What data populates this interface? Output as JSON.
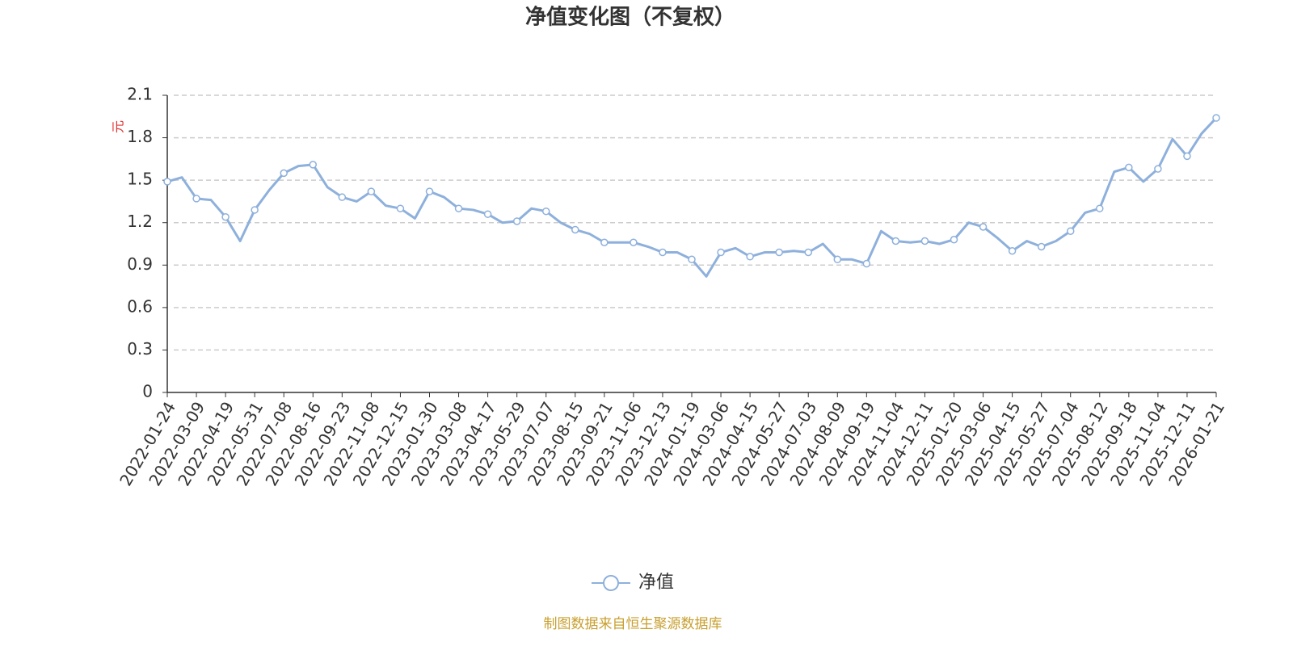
{
  "chart_data": {
    "type": "line",
    "title": "净值变化图（不复权）",
    "y_label": "元",
    "source": "制图数据来自恒生聚源数据库",
    "categories": [
      "2022-01-24",
      null,
      "2022-03-09",
      null,
      "2022-04-19",
      null,
      "2022-05-31",
      null,
      "2022-07-08",
      null,
      "2022-08-16",
      null,
      "2022-09-23",
      null,
      "2022-11-08",
      null,
      "2022-12-15",
      null,
      "2023-01-30",
      null,
      "2023-03-08",
      null,
      "2023-04-17",
      null,
      "2023-05-29",
      null,
      "2023-07-07",
      null,
      "2023-08-15",
      null,
      "2023-09-21",
      null,
      "2023-11-06",
      null,
      "2023-12-13",
      null,
      "2024-01-19",
      null,
      "2024-03-06",
      null,
      "2024-04-15",
      null,
      "2024-05-27",
      null,
      "2024-07-03",
      null,
      "2024-08-09",
      null,
      "2024-09-19",
      null,
      "2024-11-04",
      null,
      "2024-12-11",
      null,
      "2025-01-20",
      null,
      "2025-03-06",
      null,
      "2025-04-15",
      null,
      "2025-05-27",
      null,
      "2025-07-04",
      null,
      "2025-08-12",
      null,
      "2025-09-18",
      null,
      "2025-11-04",
      null,
      "2025-12-11",
      null,
      "2026-01-21"
    ],
    "series": [
      {
        "name": "净值",
        "color": "#8eb0dc",
        "values": [
          1.49,
          1.52,
          1.37,
          1.36,
          1.24,
          1.07,
          1.29,
          1.43,
          1.55,
          1.6,
          1.61,
          1.45,
          1.38,
          1.35,
          1.42,
          1.32,
          1.3,
          1.23,
          1.42,
          1.38,
          1.3,
          1.29,
          1.26,
          1.2,
          1.21,
          1.3,
          1.28,
          1.2,
          1.15,
          1.12,
          1.06,
          1.06,
          1.06,
          1.03,
          0.99,
          0.99,
          0.94,
          0.82,
          0.99,
          1.02,
          0.96,
          0.99,
          0.99,
          1.0,
          0.99,
          1.05,
          0.94,
          0.94,
          0.91,
          1.14,
          1.07,
          1.06,
          1.07,
          1.05,
          1.08,
          1.2,
          1.17,
          1.09,
          1.0,
          1.07,
          1.03,
          1.07,
          1.14,
          1.27,
          1.3,
          1.56,
          1.59,
          1.49,
          1.58,
          1.79,
          1.67,
          1.83,
          1.94
        ]
      }
    ],
    "ylim": [
      0,
      2.1
    ],
    "yticks": [
      0,
      0.3,
      0.6,
      0.9,
      1.2,
      1.5,
      1.8,
      2.1
    ],
    "grid": true,
    "legend": "bottom"
  }
}
